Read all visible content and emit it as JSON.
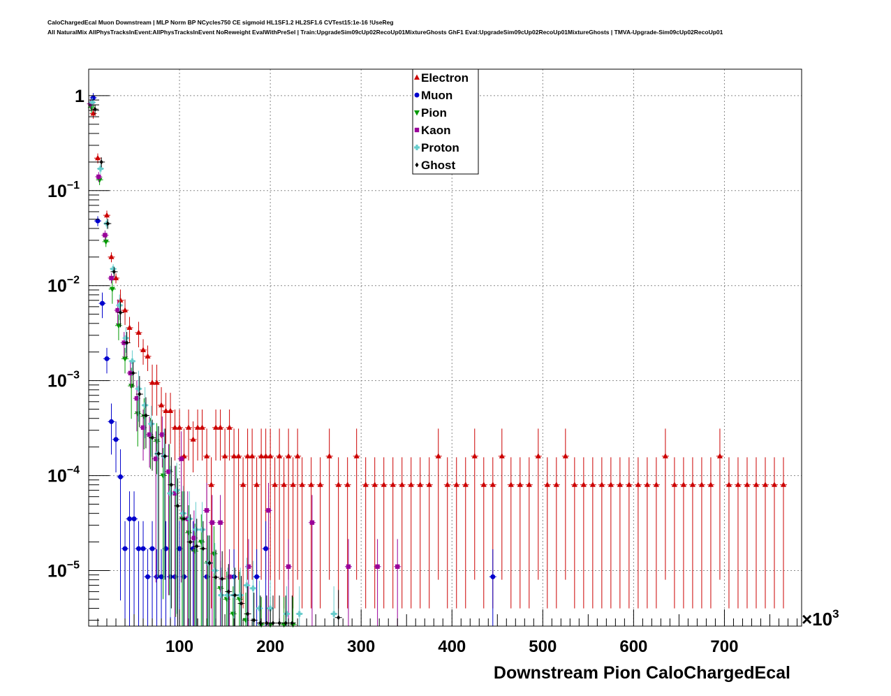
{
  "header": {
    "line1": "CaloChargedEcal Muon Downstream | MLP Norm BP NCycles750 CE sigmoid HL1SF1.2 HL2SF1.6 CVTest15:1e-16 !UseReg",
    "line2": "All NaturalMix AllPhysTracksInEvent:AllPhysTracksInEvent NoReweight EvalWithPreSel | Train:UpgradeSim09cUp02RecoUp01MixtureGhosts GhF1 Eval:UpgradeSim09cUp02RecoUp01MixtureGhosts | TMVA-Upgrade-Sim09cUp02RecoUp01"
  },
  "chart_data": {
    "type": "scatter",
    "xlabel": "Downstream Pion CaloChargedEcal",
    "x_multiplier_label": "×10",
    "x_multiplier_exp": "3",
    "xlim": [
      0,
      785
    ],
    "ylim": [
      2.6e-06,
      1.9
    ],
    "yscale": "log",
    "grid": true,
    "legend_position": "top-center",
    "x_ticks": [
      100,
      200,
      300,
      400,
      500,
      600,
      700
    ],
    "y_ticks": [
      {
        "value": 1,
        "base": "1",
        "exp": ""
      },
      {
        "value": 0.1,
        "base": "10",
        "exp": "−1"
      },
      {
        "value": 0.01,
        "base": "10",
        "exp": "−2"
      },
      {
        "value": 0.001,
        "base": "10",
        "exp": "−3"
      },
      {
        "value": 0.0001,
        "base": "10",
        "exp": "−4"
      },
      {
        "value": 1e-05,
        "base": "10",
        "exp": "−5"
      }
    ],
    "series": [
      {
        "name": "Electron",
        "color": "#cc0000",
        "marker": "triangle-up",
        "x": [
          5,
          10,
          20,
          25,
          30,
          35,
          40,
          45,
          55,
          60,
          65,
          70,
          75,
          80,
          85,
          90,
          95,
          100,
          105,
          110,
          115,
          120,
          125,
          130,
          135,
          140,
          145,
          150,
          155,
          160,
          165,
          170,
          175,
          180,
          185,
          190,
          195,
          200,
          205,
          210,
          215,
          220,
          225,
          230,
          235,
          245,
          255,
          265,
          275,
          285,
          295,
          305,
          315,
          325,
          335,
          345,
          355,
          365,
          375,
          385,
          395,
          405,
          415,
          425,
          435,
          445,
          455,
          465,
          475,
          485,
          495,
          505,
          515,
          525,
          535,
          545,
          555,
          565,
          575,
          585,
          595,
          605,
          615,
          625,
          635,
          645,
          655,
          665,
          675,
          685,
          695,
          705,
          715,
          725,
          735,
          745,
          755,
          765
        ],
        "y": [
          0.65,
          0.22,
          0.055,
          0.02,
          0.012,
          0.007,
          0.0055,
          0.0036,
          0.0032,
          0.0021,
          0.0018,
          0.00095,
          0.00095,
          0.00055,
          0.00048,
          0.00048,
          0.00032,
          0.00032,
          0.00016,
          0.00032,
          0.00024,
          0.00032,
          0.00032,
          0.00016,
          8e-05,
          0.00032,
          0.00032,
          0.00016,
          0.00032,
          0.00016,
          0.00016,
          8e-05,
          0.00016,
          0.00016,
          8e-05,
          0.00016,
          0.00016,
          0.00016,
          8e-05,
          0.00016,
          8e-05,
          0.00016,
          8e-05,
          0.00016,
          8e-05,
          8e-05,
          8e-05,
          0.00016,
          8e-05,
          8e-05,
          0.00016,
          8e-05,
          8e-05,
          8e-05,
          8e-05,
          8e-05,
          8e-05,
          8e-05,
          8e-05,
          0.00016,
          8e-05,
          8e-05,
          8e-05,
          0.00016,
          8e-05,
          8e-05,
          0.00016,
          8e-05,
          8e-05,
          8e-05,
          0.00016,
          8e-05,
          8e-05,
          0.00016,
          8e-05,
          8e-05,
          8e-05,
          8e-05,
          8e-05,
          8e-05,
          8e-05,
          8e-05,
          8e-05,
          8e-05,
          0.00016,
          8e-05,
          8e-05,
          8e-05,
          8e-05,
          8e-05,
          0.00016,
          8e-05,
          8e-05,
          8e-05,
          8e-05,
          8e-05,
          8e-05,
          8e-05
        ]
      },
      {
        "name": "Muon",
        "color": "#0000cc",
        "marker": "circle",
        "x": [
          5,
          10,
          15,
          20,
          25,
          30,
          35,
          40,
          45,
          50,
          55,
          60,
          65,
          70,
          75,
          80,
          85,
          90,
          95,
          100,
          105,
          115,
          130,
          160,
          185,
          195,
          445
        ],
        "y": [
          0.95,
          0.048,
          0.0065,
          0.0017,
          0.00037,
          0.00024,
          9.7e-05,
          1.7e-05,
          3.5e-05,
          3.5e-05,
          1.7e-05,
          1.7e-05,
          8.6e-06,
          1.7e-05,
          8.6e-06,
          8.6e-06,
          1.7e-05,
          8.6e-06,
          8.6e-06,
          1.7e-05,
          8.6e-06,
          1.7e-05,
          8.6e-06,
          8.6e-06,
          8.6e-06,
          1.7e-05,
          8.6e-06
        ]
      },
      {
        "name": "Pion",
        "color": "#009900",
        "marker": "triangle-down",
        "x": [
          3,
          12,
          19,
          26,
          33,
          40,
          47,
          54,
          61,
          68,
          75,
          82,
          89,
          96,
          103,
          110,
          117,
          124,
          131,
          138,
          145,
          152,
          159,
          166,
          173,
          190,
          200,
          215,
          225
        ],
        "y": [
          0.75,
          0.13,
          0.029,
          0.0092,
          0.0038,
          0.0017,
          0.00088,
          0.00045,
          0.00042,
          0.00026,
          0.00023,
          0.0001,
          0.00011,
          6.5e-05,
          3.5e-05,
          2.5e-05,
          1.6e-05,
          2e-05,
          1.2e-05,
          1.5e-05,
          6.5e-06,
          5e-06,
          3.5e-06,
          5e-06,
          3e-06,
          2.7e-06,
          2.7e-06,
          2.7e-06,
          2.7e-06
        ]
      },
      {
        "name": "Kaon",
        "color": "#990099",
        "marker": "square",
        "x": [
          2,
          11,
          18,
          25,
          32,
          39,
          46,
          53,
          60,
          67,
          74,
          81,
          88,
          95,
          102,
          109,
          116,
          130,
          136,
          145,
          155,
          176,
          198,
          220,
          246,
          286,
          318,
          340
        ],
        "y": [
          0.82,
          0.14,
          0.034,
          0.012,
          0.0055,
          0.0025,
          0.0012,
          0.00065,
          0.00032,
          0.00027,
          0.00015,
          0.00027,
          0.00011,
          6.5e-05,
          0.00015,
          3.5e-05,
          2.2e-05,
          4.3e-05,
          3.2e-05,
          3.2e-05,
          8.6e-06,
          1.1e-05,
          4.3e-05,
          1.1e-05,
          3.2e-05,
          1.1e-05,
          1.1e-05,
          1.1e-05
        ]
      },
      {
        "name": "Proton",
        "color": "#66cccc",
        "marker": "cross",
        "x": [
          4,
          13,
          20,
          27,
          34,
          41,
          48,
          55,
          62,
          69,
          76,
          83,
          90,
          97,
          104,
          111,
          118,
          125,
          132,
          139,
          146,
          153,
          160,
          167,
          174,
          181,
          188,
          200,
          218,
          232,
          270
        ],
        "y": [
          0.85,
          0.17,
          0.045,
          0.015,
          0.0062,
          0.0028,
          0.0016,
          0.00082,
          0.00055,
          0.00035,
          0.00017,
          0.00016,
          6.5e-05,
          7e-05,
          4e-05,
          3.5e-05,
          2.7e-05,
          2.7e-05,
          1.2e-05,
          1e-05,
          5.5e-06,
          5.5e-06,
          5.5e-06,
          5.5e-06,
          7e-06,
          6.5e-06,
          4e-06,
          4e-06,
          3.5e-06,
          3.5e-06,
          3.5e-06
        ]
      },
      {
        "name": "Ghost",
        "color": "#000000",
        "marker": "diamond",
        "x": [
          7,
          14,
          21,
          28,
          35,
          42,
          49,
          56,
          63,
          70,
          77,
          84,
          91,
          98,
          105,
          112,
          119,
          126,
          133,
          140,
          147,
          154,
          161,
          168,
          175,
          182,
          189,
          196,
          203,
          210,
          217,
          224,
          275
        ],
        "y": [
          0.72,
          0.2,
          0.045,
          0.014,
          0.0052,
          0.0025,
          0.0012,
          0.00072,
          0.00043,
          0.00025,
          0.00017,
          0.00016,
          8e-05,
          4.8e-05,
          3.5e-05,
          2e-05,
          1.8e-05,
          1.7e-05,
          1.2e-05,
          8.5e-06,
          8.2e-06,
          6e-06,
          5.5e-06,
          4.5e-06,
          3.5e-06,
          3e-06,
          2.8e-06,
          2.8e-06,
          2.8e-06,
          2.8e-06,
          2.8e-06,
          2.8e-06,
          3.2e-06
        ]
      }
    ]
  }
}
